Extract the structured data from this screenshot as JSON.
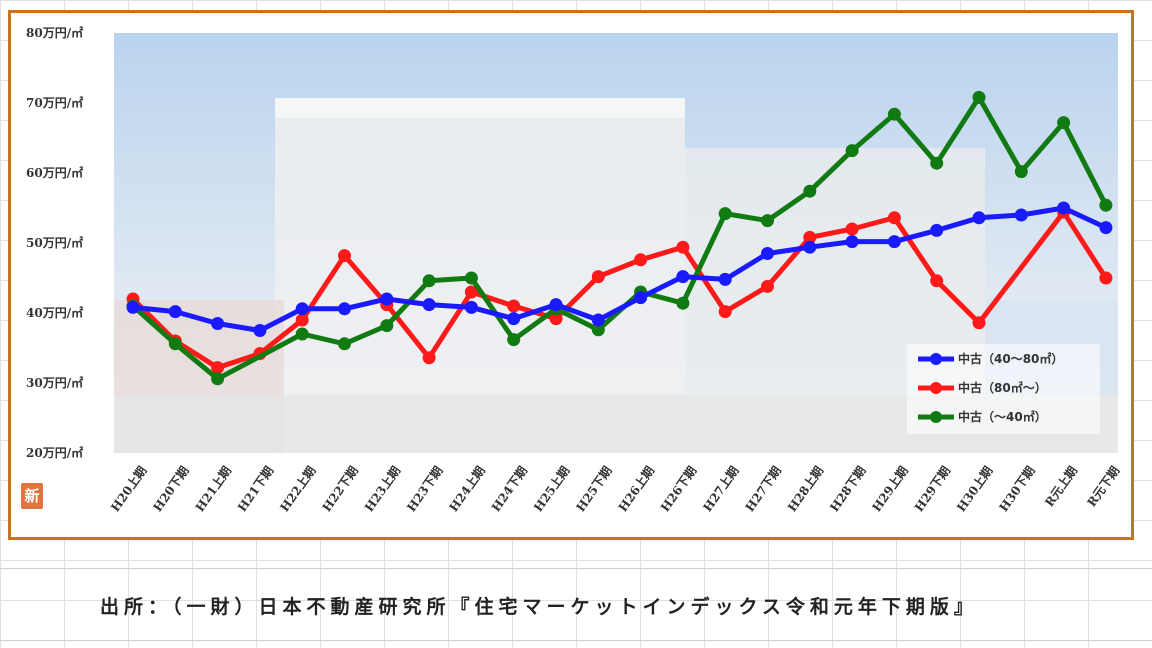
{
  "source_note": "出所：（一財）日本不動産研究所『住宅マーケットインデックス令和元年下期版』",
  "badge_text": "新",
  "colors": {
    "frame": "#c8741f",
    "series_blue": "#1a1aff",
    "series_red": "#ff1a1a",
    "series_green": "#127a12"
  },
  "chart_data": {
    "type": "line",
    "title": "",
    "xlabel": "",
    "ylabel": "",
    "ylim": [
      20,
      80
    ],
    "y_ticks": [
      {
        "value": 80,
        "label": "80万円/㎡"
      },
      {
        "value": 70,
        "label": "70万円/㎡"
      },
      {
        "value": 60,
        "label": "60万円/㎡"
      },
      {
        "value": 50,
        "label": "50万円/㎡"
      },
      {
        "value": 40,
        "label": "40万円/㎡"
      },
      {
        "value": 30,
        "label": "30万円/㎡"
      },
      {
        "value": 20,
        "label": "20万円/㎡"
      }
    ],
    "categories": [
      "H20上期",
      "H20下期",
      "H21上期",
      "H21下期",
      "H22上期",
      "H22下期",
      "H23上期",
      "H23下期",
      "H24上期",
      "H24下期",
      "H25上期",
      "H25下期",
      "H26上期",
      "H26下期",
      "H27上期",
      "H27下期",
      "H28上期",
      "H28下期",
      "H29上期",
      "H29下期",
      "H30上期",
      "H30下期",
      "R元上期",
      "R元下期"
    ],
    "legend_position": "bottom-right",
    "grid": false,
    "series": [
      {
        "name": "中古（40～80㎡）",
        "color": "#1a1aff",
        "values": [
          40.8,
          40.2,
          38.5,
          37.5,
          40.6,
          40.6,
          42.0,
          41.2,
          40.8,
          39.2,
          41.2,
          39.0,
          42.2,
          45.2,
          44.8,
          48.5,
          49.4,
          50.2,
          50.2,
          51.8,
          53.6,
          54.0,
          55.0,
          52.2
        ]
      },
      {
        "name": "中古（80㎡～）",
        "color": "#ff1a1a",
        "values": [
          42.0,
          36.0,
          32.2,
          34.2,
          39.0,
          48.2,
          41.2,
          33.6,
          43.0,
          41.0,
          39.2,
          45.2,
          47.6,
          49.4,
          40.2,
          43.8,
          50.8,
          52.0,
          53.6,
          44.6,
          38.6,
          null,
          54.4,
          45.0
        ]
      },
      {
        "name": "中古（～40㎡）",
        "color": "#127a12",
        "values": [
          41.0,
          35.6,
          30.6,
          null,
          37.0,
          35.6,
          38.2,
          44.6,
          45.0,
          36.2,
          40.6,
          37.6,
          43.0,
          41.4,
          54.2,
          53.2,
          57.4,
          63.2,
          68.4,
          61.4,
          70.8,
          60.2,
          67.2,
          55.4
        ]
      }
    ]
  }
}
